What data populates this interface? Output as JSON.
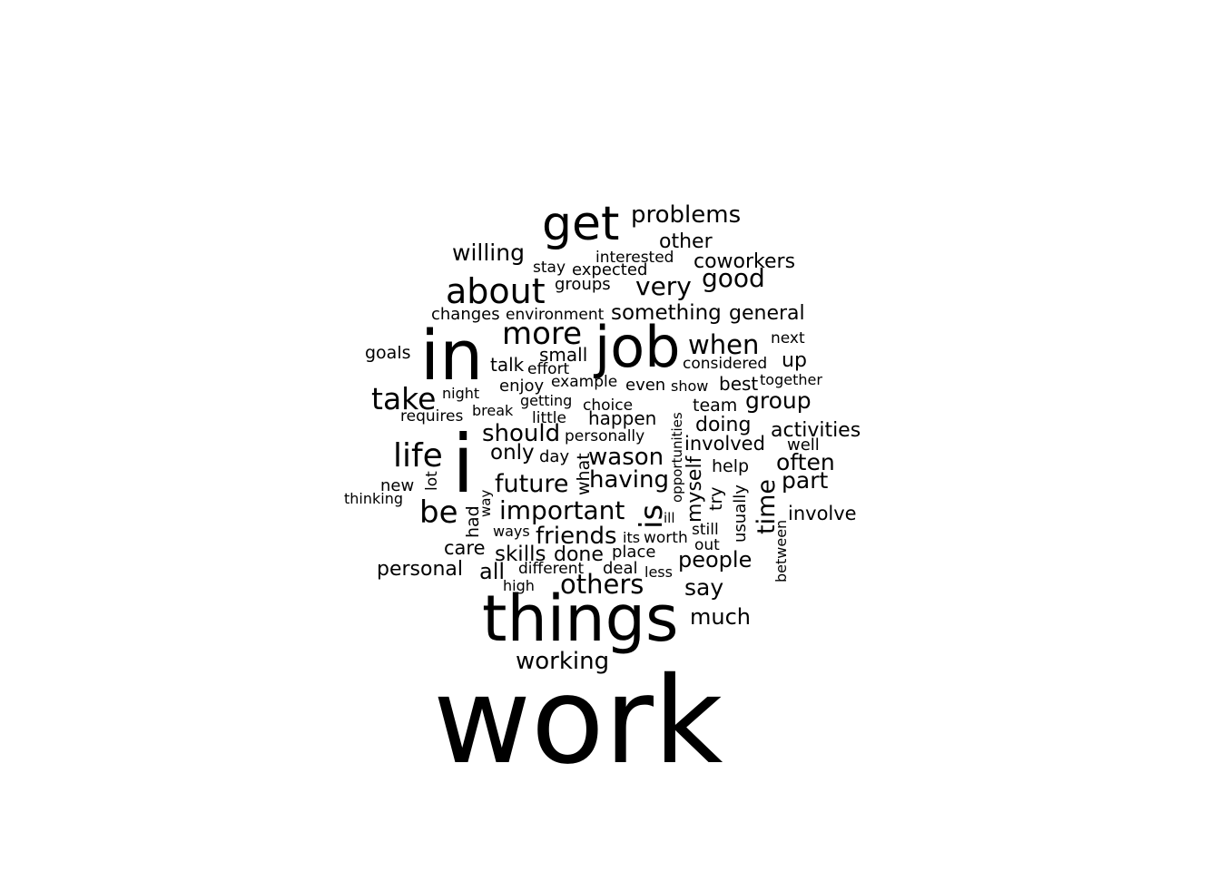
{
  "word_cloud": {
    "text_color": "#000000",
    "background_color": "#ffffff",
    "words": [
      "work",
      "things",
      "job",
      "in",
      "i",
      "get",
      "about",
      "more",
      "life",
      "take",
      "be",
      "when",
      "important",
      "good",
      "very",
      "future",
      "having",
      "is",
      "time",
      "others",
      "should",
      "problems",
      "willing",
      "wason",
      "friends",
      "group",
      "often",
      "part",
      "something",
      "other",
      "coworkers",
      "general",
      "people",
      "much",
      "say",
      "working",
      "activities",
      "involve",
      "doing",
      "only",
      "involved",
      "all",
      "skills",
      "done",
      "up",
      "personal",
      "care",
      "myself",
      "best",
      "team",
      "happen",
      "small",
      "talk",
      "help",
      "expected",
      "place",
      "interested",
      "environment",
      "changes",
      "goals",
      "stay",
      "groups",
      "next",
      "considered",
      "together",
      "enjoy",
      "effort",
      "example",
      "even",
      "show",
      "night",
      "getting",
      "choice",
      "break",
      "requires",
      "little",
      "personally",
      "day",
      "well",
      "new",
      "thinking",
      "lot",
      "what",
      "try",
      "usually",
      "had",
      "way",
      "ways",
      "its",
      "worth",
      "still",
      "out",
      "different",
      "deal",
      "less",
      "high",
      "ill",
      "opportunities",
      "between"
    ]
  }
}
